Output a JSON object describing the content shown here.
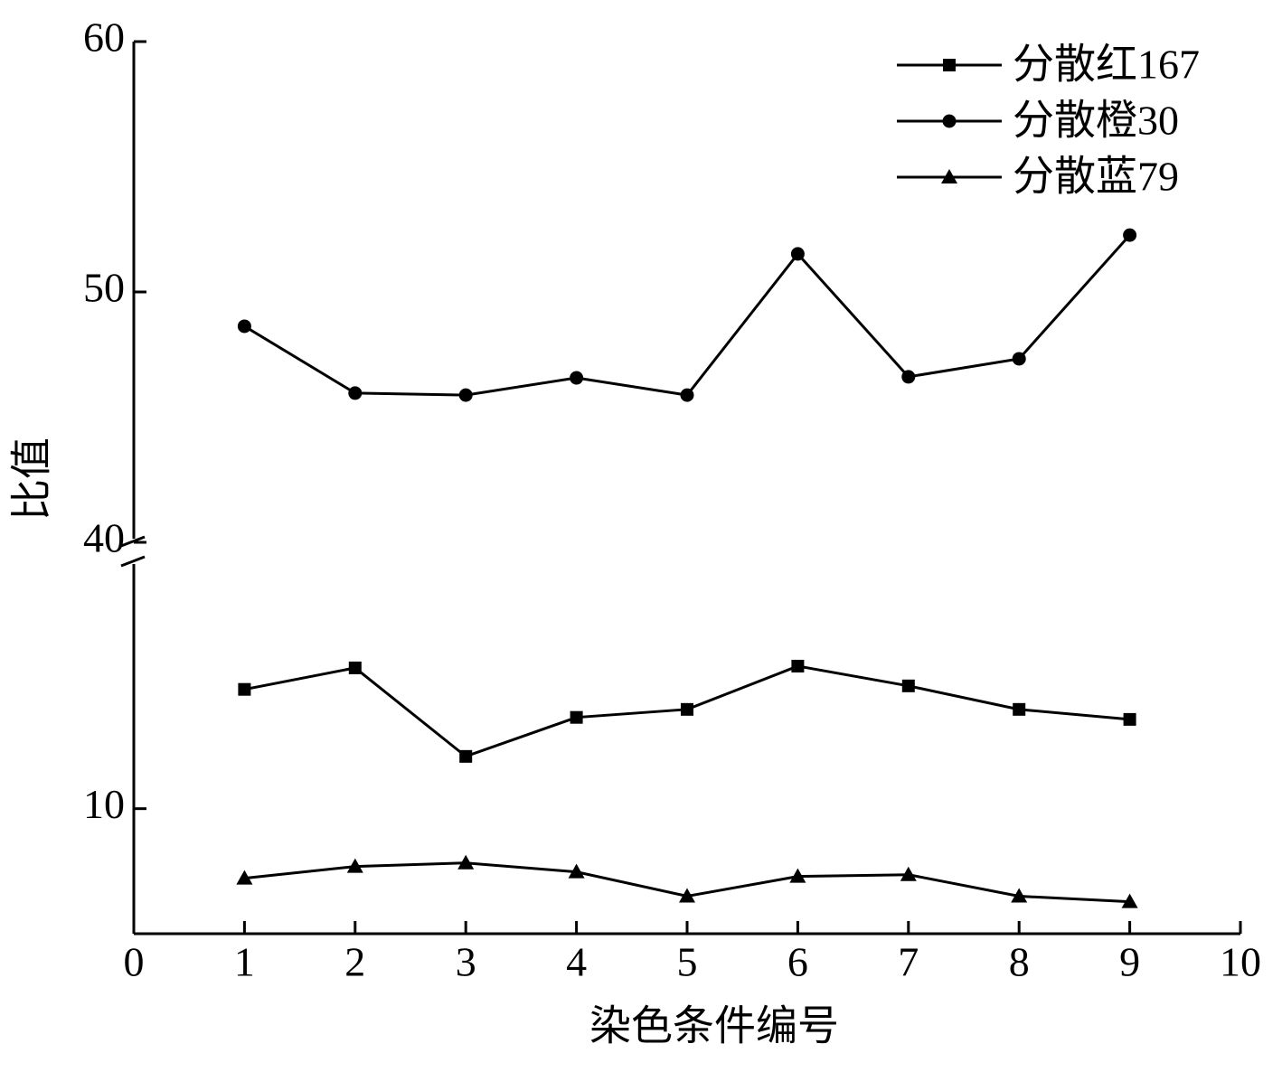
{
  "chart_data": {
    "type": "line",
    "xlabel": "染色条件编号",
    "ylabel": "比值",
    "x": [
      1,
      2,
      3,
      4,
      5,
      6,
      7,
      8,
      9
    ],
    "series": [
      {
        "name": "分散红167",
        "color": "#000000",
        "marker": "square",
        "values": [
          14.77,
          15.63,
          12.09,
          13.65,
          13.97,
          15.7,
          14.91,
          13.97,
          13.57
        ]
      },
      {
        "name": "分散橙30",
        "color": "#000000",
        "marker": "circle",
        "values": [
          48.63,
          45.96,
          45.88,
          46.57,
          45.88,
          51.52,
          46.61,
          47.33,
          52.27
        ]
      },
      {
        "name": "分散蓝79",
        "color": "#000000",
        "marker": "triangle",
        "values": [
          7.22,
          7.69,
          7.83,
          7.47,
          6.5,
          7.29,
          7.36,
          6.5,
          6.28
        ]
      }
    ],
    "xlim": [
      0,
      10
    ],
    "xticks": [
      0,
      1,
      2,
      3,
      4,
      5,
      6,
      7,
      8,
      9,
      10
    ],
    "ylim": [
      5,
      60
    ],
    "ybreak": [
      20,
      40
    ],
    "yticks": [
      10,
      40,
      50,
      60
    ],
    "legend": "upper right"
  }
}
